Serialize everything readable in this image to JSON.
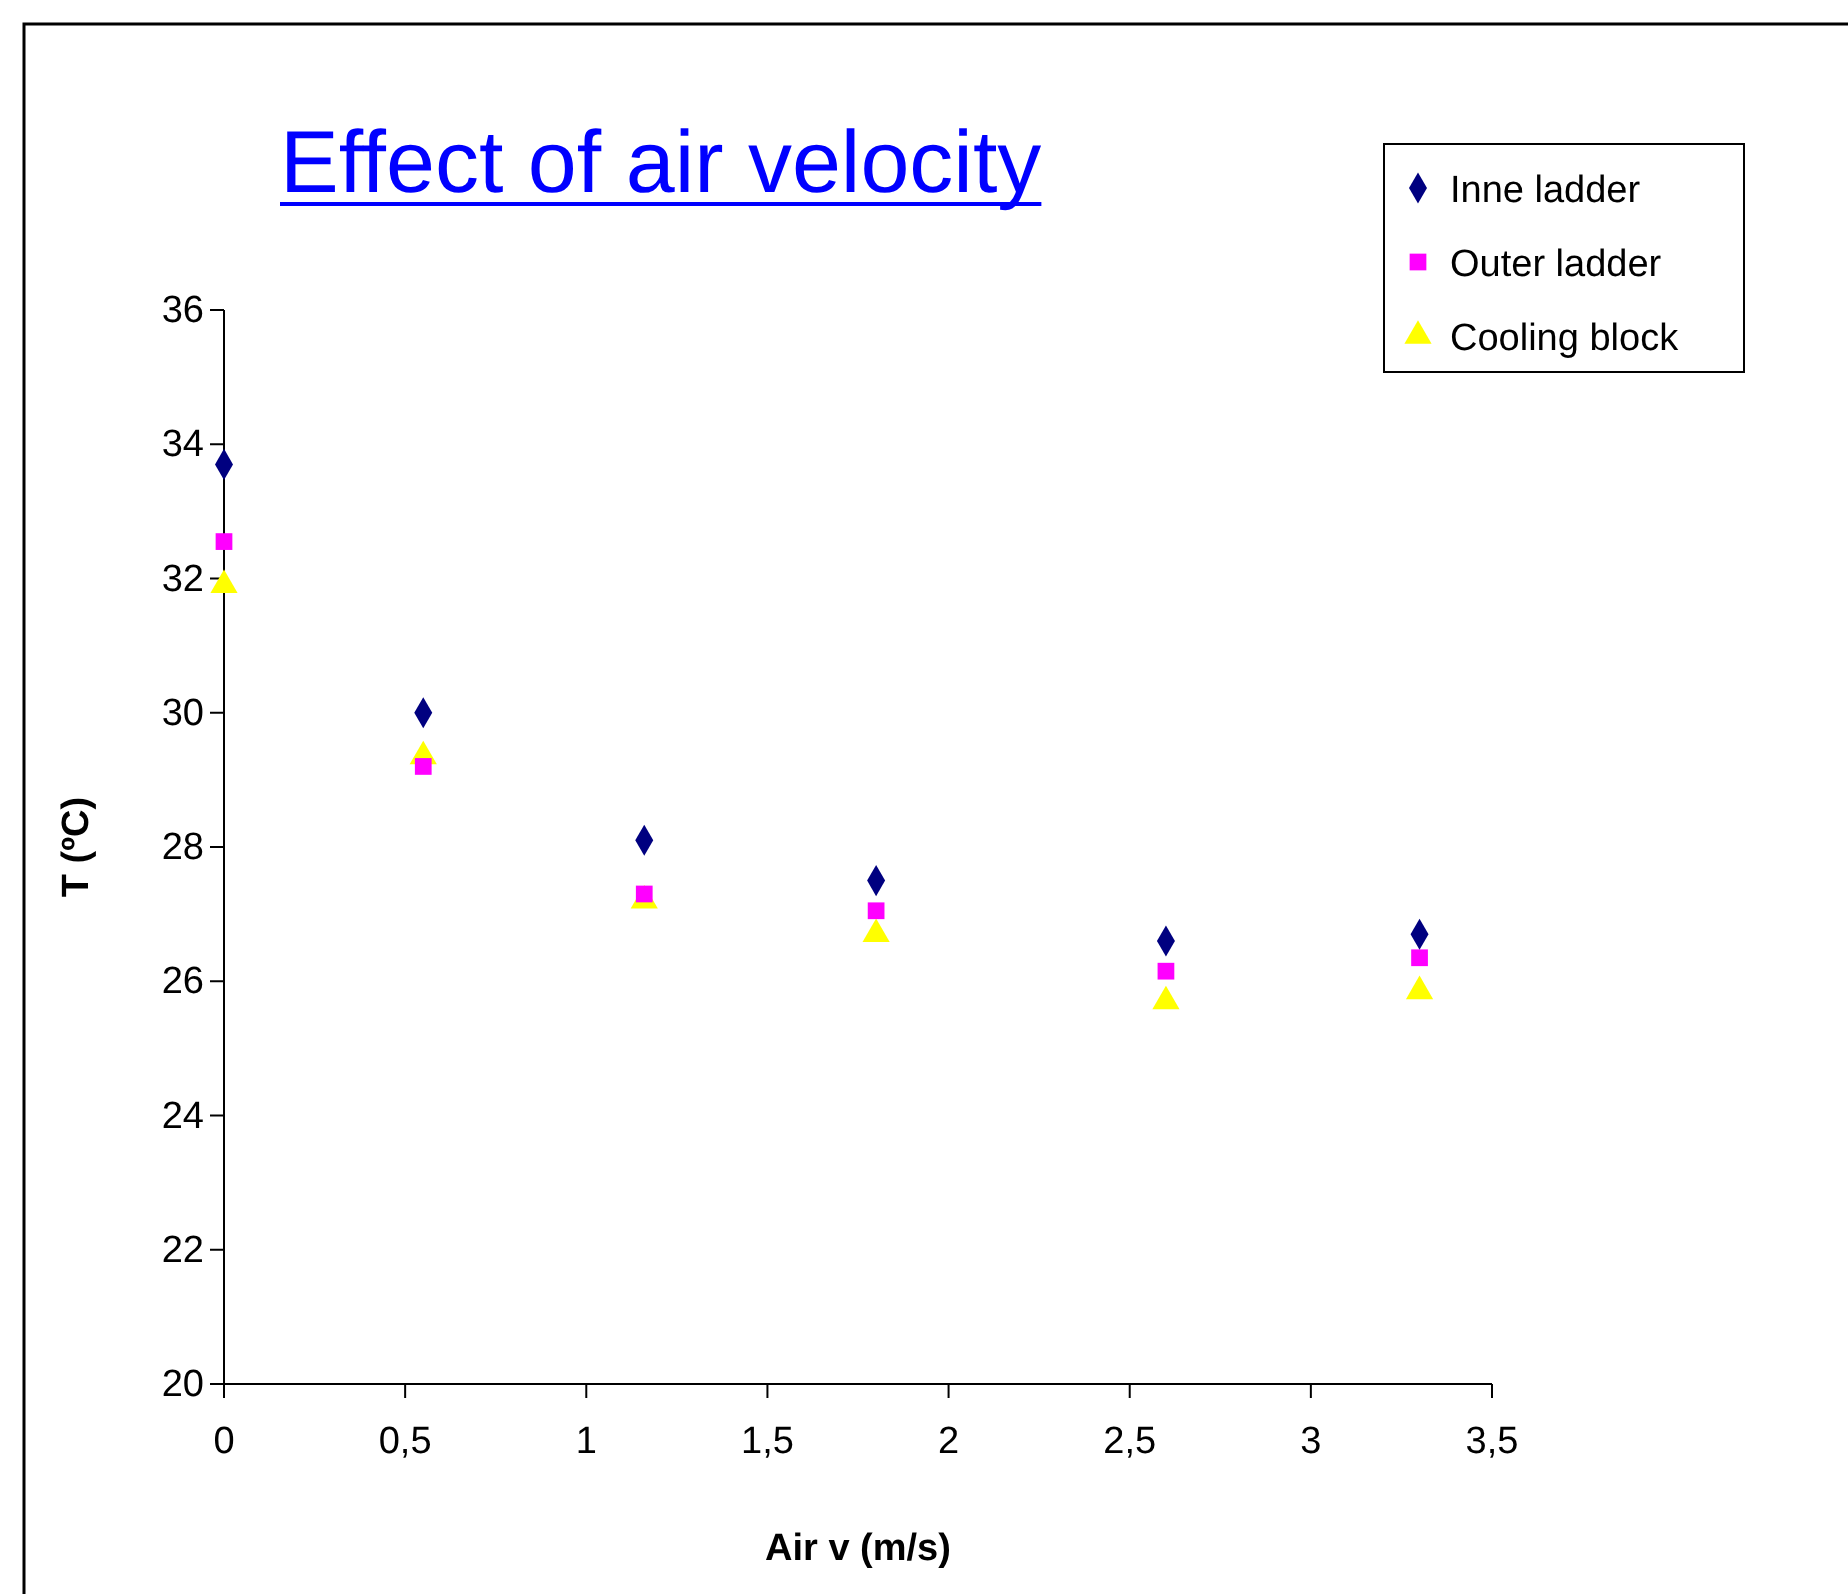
{
  "chart_data": {
    "type": "scatter",
    "title": "Effect of air velocity",
    "xlabel": "Air v (m/s)",
    "ylabel": "T (ºC)",
    "x": [
      0,
      0.55,
      1.16,
      1.8,
      2.6,
      3.3
    ],
    "series": [
      {
        "name": "Inne ladder",
        "color": "#000080",
        "marker": "diamond",
        "values": [
          33.7,
          30.0,
          28.1,
          27.5,
          26.6,
          26.7
        ]
      },
      {
        "name": "Outer ladder",
        "color": "#ff00ff",
        "marker": "square",
        "values": [
          32.55,
          29.2,
          27.3,
          27.05,
          26.15,
          26.35
        ]
      },
      {
        "name": "Cooling block",
        "color": "#ffff00",
        "marker": "triangle",
        "values": [
          31.9,
          29.35,
          27.2,
          26.7,
          25.7,
          25.85
        ]
      }
    ],
    "xlim": [
      0,
      3.5
    ],
    "xticks": [
      0,
      {
        "value": 0.5,
        "label": "0,5"
      },
      1,
      {
        "value": 1.5,
        "label": "1,5"
      },
      2,
      {
        "value": 2.5,
        "label": "2,5"
      },
      3,
      {
        "value": 3.5,
        "label": "3,5"
      }
    ],
    "ylim": [
      20,
      36
    ],
    "yticks": [
      20,
      22,
      24,
      26,
      28,
      30,
      32,
      34,
      36
    ],
    "grid": false,
    "legend": "top right"
  }
}
